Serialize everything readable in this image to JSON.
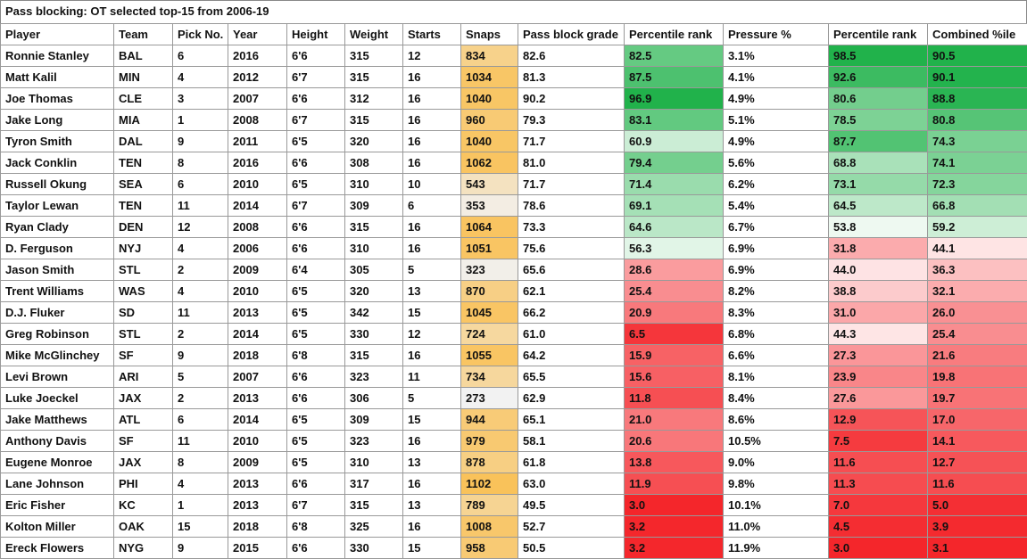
{
  "title": "Pass blocking: OT selected top-15 from 2006-19",
  "table": {
    "header": [
      "Player",
      "Team",
      "Pick No.",
      "Year",
      "Height",
      "Weight",
      "Starts",
      "Snaps",
      "Pass block grade",
      "Percentile rank",
      "Pressure %",
      "Percentile rank",
      "Combined %ile"
    ],
    "rows": [
      [
        "Ronnie Stanley",
        "BAL",
        "6",
        "2016",
        "6'6",
        "315",
        "12",
        "834",
        "82.6",
        "82.5",
        "3.1%",
        "98.5",
        "90.5"
      ],
      [
        "Matt Kalil",
        "MIN",
        "4",
        "2012",
        "6'7",
        "315",
        "16",
        "1034",
        "81.3",
        "87.5",
        "4.1%",
        "92.6",
        "90.1"
      ],
      [
        "Joe Thomas",
        "CLE",
        "3",
        "2007",
        "6'6",
        "312",
        "16",
        "1040",
        "90.2",
        "96.9",
        "4.9%",
        "80.6",
        "88.8"
      ],
      [
        "Jake Long",
        "MIA",
        "1",
        "2008",
        "6'7",
        "315",
        "16",
        "960",
        "79.3",
        "83.1",
        "5.1%",
        "78.5",
        "80.8"
      ],
      [
        "Tyron Smith",
        "DAL",
        "9",
        "2011",
        "6'5",
        "320",
        "16",
        "1040",
        "71.7",
        "60.9",
        "4.9%",
        "87.7",
        "74.3"
      ],
      [
        "Jack Conklin",
        "TEN",
        "8",
        "2016",
        "6'6",
        "308",
        "16",
        "1062",
        "81.0",
        "79.4",
        "5.6%",
        "68.8",
        "74.1"
      ],
      [
        "Russell Okung",
        "SEA",
        "6",
        "2010",
        "6'5",
        "310",
        "10",
        "543",
        "71.7",
        "71.4",
        "6.2%",
        "73.1",
        "72.3"
      ],
      [
        "Taylor Lewan",
        "TEN",
        "11",
        "2014",
        "6'7",
        "309",
        "6",
        "353",
        "78.6",
        "69.1",
        "5.4%",
        "64.5",
        "66.8"
      ],
      [
        "Ryan Clady",
        "DEN",
        "12",
        "2008",
        "6'6",
        "315",
        "16",
        "1064",
        "73.3",
        "64.6",
        "6.7%",
        "53.8",
        "59.2"
      ],
      [
        "D. Ferguson",
        "NYJ",
        "4",
        "2006",
        "6'6",
        "310",
        "16",
        "1051",
        "75.6",
        "56.3",
        "6.9%",
        "31.8",
        "44.1"
      ],
      [
        "Jason Smith",
        "STL",
        "2",
        "2009",
        "6'4",
        "305",
        "5",
        "323",
        "65.6",
        "28.6",
        "6.9%",
        "44.0",
        "36.3"
      ],
      [
        "Trent Williams",
        "WAS",
        "4",
        "2010",
        "6'5",
        "320",
        "13",
        "870",
        "62.1",
        "25.4",
        "8.2%",
        "38.8",
        "32.1"
      ],
      [
        "D.J. Fluker",
        "SD",
        "11",
        "2013",
        "6'5",
        "342",
        "15",
        "1045",
        "66.2",
        "20.9",
        "8.3%",
        "31.0",
        "26.0"
      ],
      [
        "Greg Robinson",
        "STL",
        "2",
        "2014",
        "6'5",
        "330",
        "12",
        "724",
        "61.0",
        "6.5",
        "6.8%",
        "44.3",
        "25.4"
      ],
      [
        "Mike McGlinchey",
        "SF",
        "9",
        "2018",
        "6'8",
        "315",
        "16",
        "1055",
        "64.2",
        "15.9",
        "6.6%",
        "27.3",
        "21.6"
      ],
      [
        "Levi Brown",
        "ARI",
        "5",
        "2007",
        "6'6",
        "323",
        "11",
        "734",
        "65.5",
        "15.6",
        "8.1%",
        "23.9",
        "19.8"
      ],
      [
        "Luke Joeckel",
        "JAX",
        "2",
        "2013",
        "6'6",
        "306",
        "5",
        "273",
        "62.9",
        "11.8",
        "8.4%",
        "27.6",
        "19.7"
      ],
      [
        "Jake Matthews",
        "ATL",
        "6",
        "2014",
        "6'5",
        "309",
        "15",
        "944",
        "65.1",
        "21.0",
        "8.6%",
        "12.9",
        "17.0"
      ],
      [
        "Anthony Davis",
        "SF",
        "11",
        "2010",
        "6'5",
        "323",
        "16",
        "979",
        "58.1",
        "20.6",
        "10.5%",
        "7.5",
        "14.1"
      ],
      [
        "Eugene Monroe",
        "JAX",
        "8",
        "2009",
        "6'5",
        "310",
        "13",
        "878",
        "61.8",
        "13.8",
        "9.0%",
        "11.6",
        "12.7"
      ],
      [
        "Lane Johnson",
        "PHI",
        "4",
        "2013",
        "6'6",
        "317",
        "16",
        "1102",
        "63.0",
        "11.9",
        "9.8%",
        "11.3",
        "11.6"
      ],
      [
        "Eric Fisher",
        "KC",
        "1",
        "2013",
        "6'7",
        "315",
        "13",
        "789",
        "49.5",
        "3.0",
        "10.1%",
        "7.0",
        "5.0"
      ],
      [
        "Kolton Miller",
        "OAK",
        "15",
        "2018",
        "6'8",
        "325",
        "16",
        "1008",
        "52.7",
        "3.2",
        "11.0%",
        "4.5",
        "3.9"
      ],
      [
        "Ereck Flowers",
        "NYG",
        "9",
        "2015",
        "6'6",
        "330",
        "15",
        "958",
        "50.5",
        "3.2",
        "11.9%",
        "3.0",
        "3.1"
      ]
    ]
  }
}
